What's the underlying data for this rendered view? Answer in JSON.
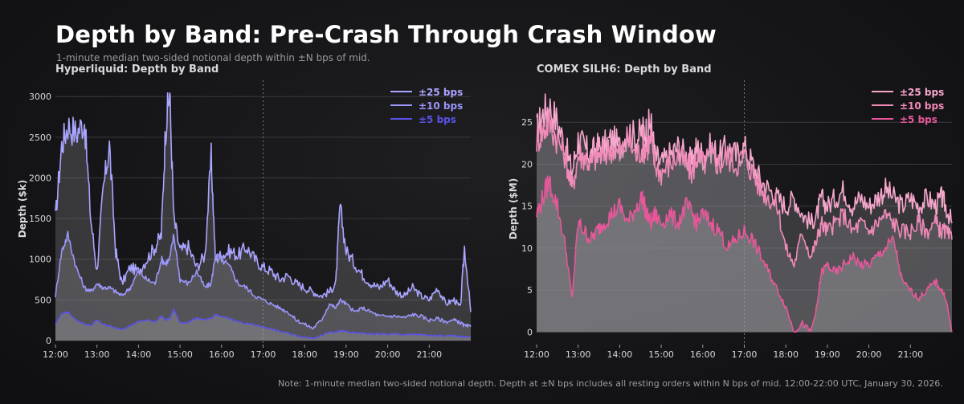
{
  "title": "Depth by Band: Pre-Crash Through Crash Window",
  "subtitle": "1-minute median two-sided notional depth within ±N bps of mid.",
  "note": "Note: 1-minute median two-sided notional depth. Depth at ±N bps includes all resting orders within N bps of mid. 12:00-22:00 UTC, January 30, 2026.",
  "chart_data": [
    {
      "type": "area",
      "title": "Hyperliquid: Depth by Band",
      "xlabel": "",
      "ylabel": "Depth ($k)",
      "xlim": [
        12,
        22
      ],
      "ylim": [
        -50,
        3200
      ],
      "x_ticks": [
        "12:00",
        "13:00",
        "14:00",
        "15:00",
        "16:00",
        "17:00",
        "18:00",
        "19:00",
        "20:00",
        "21:00"
      ],
      "y_ticks": [
        "0",
        "500",
        "1000",
        "1500",
        "2000",
        "2500",
        "3000"
      ],
      "y_tick_values": [
        0,
        500,
        1000,
        1500,
        2000,
        2500,
        3000
      ],
      "crash_marker_x": 17,
      "legend_position": "top-right",
      "x": [
        12.0,
        12.15,
        12.3,
        12.5,
        12.7,
        12.85,
        13.0,
        13.15,
        13.3,
        13.45,
        13.6,
        13.8,
        14.0,
        14.2,
        14.4,
        14.55,
        14.65,
        14.75,
        14.85,
        15.0,
        15.2,
        15.4,
        15.6,
        15.75,
        15.85,
        16.0,
        16.2,
        16.4,
        16.6,
        16.8,
        17.0,
        17.2,
        17.4,
        17.6,
        17.8,
        18.0,
        18.2,
        18.4,
        18.6,
        18.75,
        18.85,
        19.0,
        19.2,
        19.4,
        19.6,
        19.8,
        20.0,
        20.2,
        20.4,
        20.6,
        20.8,
        21.0,
        21.2,
        21.4,
        21.6,
        21.75,
        21.85,
        22.0
      ],
      "series": [
        {
          "name": "±25 bps",
          "color": "#a9a4ff",
          "values": [
            1500,
            2400,
            2650,
            2550,
            2700,
            1500,
            850,
            1850,
            2400,
            1100,
            700,
            900,
            850,
            1000,
            1150,
            1300,
            2600,
            3050,
            1500,
            1100,
            1150,
            900,
            1050,
            2250,
            1000,
            1050,
            1100,
            1050,
            1150,
            1000,
            900,
            850,
            750,
            800,
            700,
            650,
            600,
            550,
            600,
            700,
            1650,
            1100,
            950,
            800,
            700,
            650,
            750,
            600,
            550,
            650,
            550,
            500,
            650,
            450,
            500,
            400,
            1150,
            350
          ]
        },
        {
          "name": "±10 bps",
          "color": "#9a95f8",
          "values": [
            550,
            1100,
            1300,
            900,
            650,
            600,
            700,
            650,
            650,
            600,
            550,
            650,
            850,
            750,
            700,
            1000,
            950,
            1000,
            1300,
            750,
            700,
            850,
            650,
            700,
            1050,
            1000,
            900,
            700,
            650,
            550,
            500,
            450,
            400,
            350,
            250,
            200,
            150,
            250,
            450,
            400,
            500,
            450,
            350,
            400,
            350,
            300,
            300,
            300,
            280,
            320,
            300,
            250,
            270,
            230,
            250,
            220,
            180,
            170
          ]
        },
        {
          "name": "±5 bps",
          "color": "#5a52e6",
          "values": [
            200,
            330,
            350,
            250,
            200,
            180,
            250,
            200,
            180,
            150,
            140,
            180,
            230,
            250,
            230,
            300,
            250,
            270,
            380,
            220,
            220,
            280,
            250,
            270,
            320,
            290,
            270,
            230,
            210,
            190,
            170,
            140,
            110,
            90,
            60,
            40,
            30,
            60,
            100,
            100,
            120,
            110,
            90,
            90,
            80,
            80,
            75,
            80,
            70,
            75,
            70,
            60,
            65,
            55,
            60,
            50,
            45,
            45
          ]
        }
      ]
    },
    {
      "type": "area",
      "title": "COMEX SILH6: Depth by Band",
      "xlabel": "",
      "ylabel": "Depth ($M)",
      "xlim": [
        12,
        22
      ],
      "ylim": [
        -1.5,
        30
      ],
      "x_ticks": [
        "12:00",
        "13:00",
        "14:00",
        "15:00",
        "16:00",
        "17:00",
        "18:00",
        "19:00",
        "20:00",
        "21:00"
      ],
      "y_ticks": [
        "0",
        "5",
        "10",
        "15",
        "20",
        "25"
      ],
      "y_tick_values": [
        0,
        5,
        10,
        15,
        20,
        25
      ],
      "crash_marker_x": 17,
      "legend_position": "top-right",
      "x": [
        12.0,
        12.15,
        12.3,
        12.5,
        12.7,
        12.85,
        13.0,
        13.15,
        13.3,
        13.45,
        13.6,
        13.8,
        14.0,
        14.2,
        14.4,
        14.55,
        14.65,
        14.75,
        14.85,
        15.0,
        15.2,
        15.4,
        15.6,
        15.75,
        15.85,
        16.0,
        16.2,
        16.4,
        16.6,
        16.8,
        17.0,
        17.2,
        17.4,
        17.6,
        17.8,
        18.0,
        18.2,
        18.4,
        18.6,
        18.75,
        18.85,
        19.0,
        19.2,
        19.4,
        19.6,
        19.8,
        20.0,
        20.2,
        20.4,
        20.6,
        20.8,
        21.0,
        21.2,
        21.4,
        21.6,
        21.75,
        21.85,
        22.0
      ],
      "series": [
        {
          "name": "±25 bps",
          "color": "#f7a6cc",
          "values": [
            24,
            26,
            27,
            25,
            22,
            19,
            23,
            22,
            21,
            22,
            22,
            23,
            22,
            24,
            23,
            24,
            24,
            25,
            21,
            20,
            21,
            22,
            21,
            20,
            22,
            21,
            22,
            21,
            22,
            21,
            22,
            20,
            18,
            17,
            16,
            15,
            16,
            14,
            13,
            14,
            16,
            15,
            16,
            17,
            15,
            16,
            15,
            16,
            17,
            16,
            15,
            16,
            15,
            16,
            15,
            16,
            15,
            13
          ]
        },
        {
          "name": "±10 bps",
          "color": "#f08ab8",
          "values": [
            23,
            24,
            25,
            23,
            21,
            17,
            21,
            21,
            20,
            21,
            21,
            22,
            21,
            23,
            21,
            22,
            22,
            23,
            20,
            19,
            20,
            21,
            20,
            19,
            21,
            20,
            21,
            20,
            21,
            20,
            21,
            19,
            17,
            16,
            15,
            10,
            8,
            12,
            9,
            11,
            13,
            12,
            13,
            14,
            12,
            13,
            12,
            13,
            14,
            13,
            12,
            12,
            13,
            12,
            13,
            12,
            12,
            11
          ]
        },
        {
          "name": "±5 bps",
          "color": "#e8579a",
          "values": [
            14,
            16,
            18,
            15,
            10,
            4,
            13,
            12,
            11,
            12,
            13,
            14,
            15,
            13,
            15,
            16,
            14,
            13,
            14,
            13,
            14,
            13,
            15,
            14,
            13,
            14,
            13,
            12,
            10,
            11,
            12,
            11,
            9,
            7,
            5,
            3,
            0,
            1,
            0,
            3,
            7,
            8,
            7,
            8,
            9,
            8,
            8,
            9,
            10,
            11,
            6,
            5,
            4,
            5,
            6,
            5,
            4,
            0
          ]
        }
      ]
    }
  ]
}
